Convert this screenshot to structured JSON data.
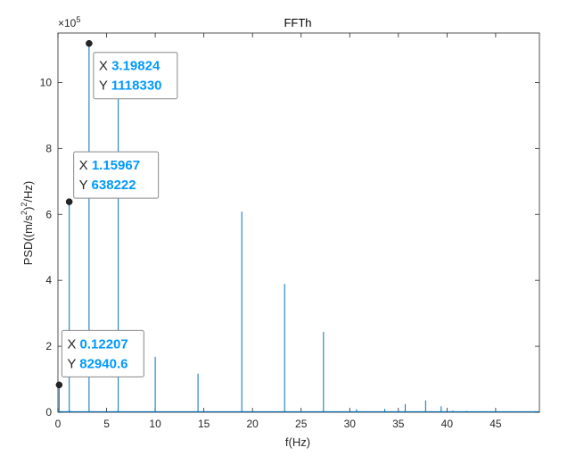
{
  "chart_data": {
    "type": "line",
    "title": "FFTh",
    "xlabel": "f(Hz)",
    "ylabel": "PSD((m/s²)²/Hz)",
    "ylabel_parts": {
      "a": "PSD((m/s",
      "b": "2",
      "c": ")",
      "d": "2",
      "e": "/Hz)"
    },
    "y_exponent_label": "×10",
    "y_exponent_power": "5",
    "xlim": [
      0,
      49.5
    ],
    "ylim": [
      0,
      1150000
    ],
    "x_ticks": [
      0,
      5,
      10,
      15,
      20,
      25,
      30,
      35,
      40,
      45
    ],
    "x_tick_labels": [
      "0",
      "5",
      "10",
      "15",
      "20",
      "25",
      "30",
      "35",
      "40",
      "45"
    ],
    "y_ticks": [
      0,
      200000,
      400000,
      600000,
      800000,
      1000000
    ],
    "y_tick_labels": [
      "0",
      "2",
      "4",
      "6",
      "8",
      "10"
    ],
    "grid": false,
    "line_color": "#0072BD",
    "series": [
      {
        "peaks": [
          {
            "x": 0.12207,
            "y": 82940.6
          },
          {
            "x": 1.15967,
            "y": 638222
          },
          {
            "x": 1.3,
            "y": 4000
          },
          {
            "x": 3.19824,
            "y": 1118330
          },
          {
            "x": 6.2,
            "y": 960000
          },
          {
            "x": 10.0,
            "y": 168000
          },
          {
            "x": 14.4,
            "y": 117000
          },
          {
            "x": 18.9,
            "y": 608000
          },
          {
            "x": 23.3,
            "y": 389000
          },
          {
            "x": 27.3,
            "y": 244000
          },
          {
            "x": 30.7,
            "y": 9000
          },
          {
            "x": 33.6,
            "y": 10000
          },
          {
            "x": 35.7,
            "y": 25000
          },
          {
            "x": 37.8,
            "y": 36000
          },
          {
            "x": 39.4,
            "y": 18000
          },
          {
            "x": 40.6,
            "y": 5000
          },
          {
            "x": 42.0,
            "y": 4000
          },
          {
            "x": 43.6,
            "y": 3000
          },
          {
            "x": 45.2,
            "y": 3000
          },
          {
            "x": 46.2,
            "y": 2000
          }
        ]
      }
    ],
    "datatips": [
      {
        "x_label": "X",
        "y_label": "Y",
        "x_value": "3.19824",
        "y_value": "1118330",
        "x": 3.19824,
        "y": 1118330
      },
      {
        "x_label": "X",
        "y_label": "Y",
        "x_value": "1.15967",
        "y_value": "638222",
        "x": 1.15967,
        "y": 638222
      },
      {
        "x_label": "X",
        "y_label": "Y",
        "x_value": "0.12207",
        "y_value": "82940.6",
        "x": 0.12207,
        "y": 82940.6
      }
    ],
    "datatip_value_color": "#0099FF"
  }
}
